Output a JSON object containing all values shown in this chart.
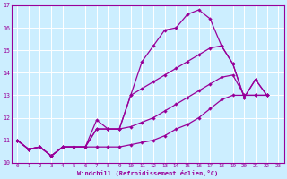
{
  "xlabel": "Windchill (Refroidissement éolien,°C)",
  "bg_color": "#cceeff",
  "line_color": "#990099",
  "grid_color": "#ffffff",
  "xlim": [
    -0.5,
    23.5
  ],
  "ylim": [
    10.0,
    17.0
  ],
  "yticks": [
    10,
    11,
    12,
    13,
    14,
    15,
    16,
    17
  ],
  "xticks": [
    0,
    1,
    2,
    3,
    4,
    5,
    6,
    7,
    8,
    9,
    10,
    11,
    12,
    13,
    14,
    15,
    16,
    17,
    18,
    19,
    20,
    21,
    22,
    23
  ],
  "series": [
    [
      11.0,
      10.6,
      10.7,
      10.3,
      10.7,
      10.7,
      10.7,
      11.9,
      11.5,
      11.5,
      13.0,
      14.5,
      15.2,
      15.9,
      16.0,
      16.6,
      16.8,
      16.4,
      15.2,
      14.4,
      12.9,
      13.7,
      13.0
    ],
    [
      11.0,
      10.6,
      10.7,
      10.3,
      10.7,
      10.7,
      10.7,
      11.5,
      11.5,
      11.5,
      13.0,
      13.3,
      13.6,
      13.9,
      14.2,
      14.5,
      14.8,
      15.1,
      15.2,
      14.4,
      12.9,
      13.7,
      13.0
    ],
    [
      11.0,
      10.6,
      10.7,
      10.3,
      10.7,
      10.7,
      10.7,
      11.5,
      11.5,
      11.5,
      11.6,
      11.8,
      12.0,
      12.3,
      12.6,
      12.9,
      13.2,
      13.5,
      13.8,
      13.9,
      13.0,
      13.0,
      13.0
    ],
    [
      11.0,
      10.6,
      10.7,
      10.3,
      10.7,
      10.7,
      10.7,
      10.7,
      10.7,
      10.7,
      10.8,
      10.9,
      11.0,
      11.2,
      11.5,
      11.7,
      12.0,
      12.4,
      12.8,
      13.0,
      13.0,
      13.0,
      13.0
    ]
  ]
}
